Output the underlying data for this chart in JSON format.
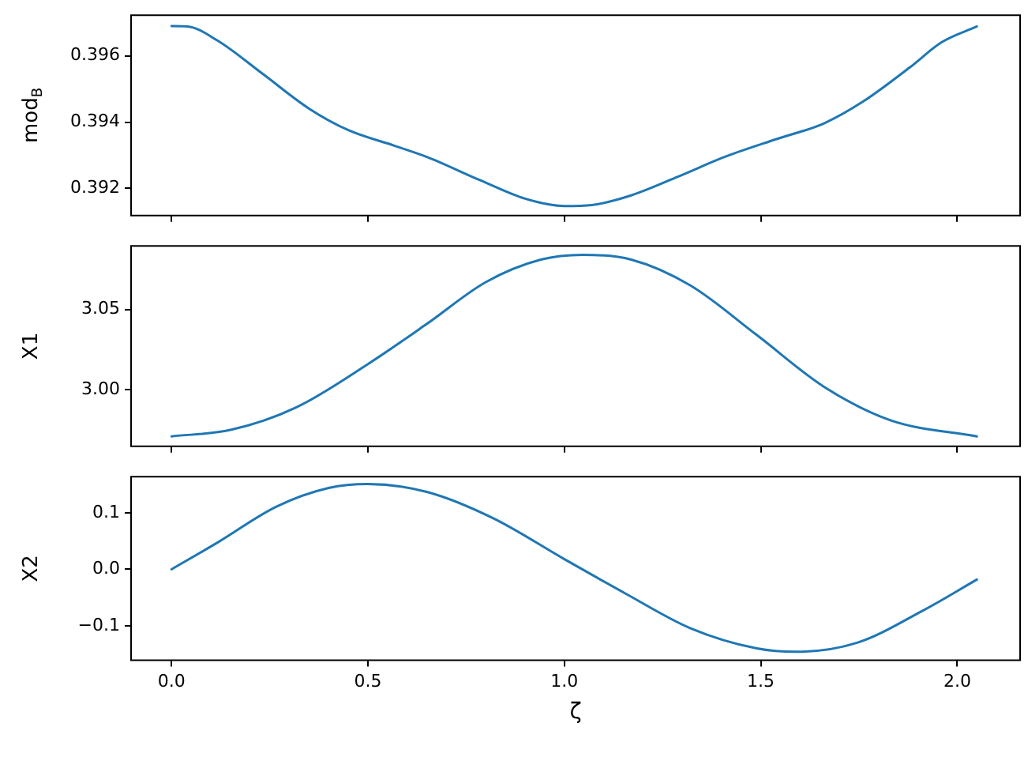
{
  "chart_data": [
    {
      "type": "line",
      "ylabel": "mod$_{B}$",
      "xlim": [
        -0.103,
        2.16
      ],
      "xticks": [
        {
          "value": 0,
          "label": null
        },
        {
          "value": 0.5,
          "label": null
        },
        {
          "value": 1,
          "label": null
        },
        {
          "value": 1.5,
          "label": null
        },
        {
          "value": 2,
          "label": null
        }
      ],
      "ylim": [
        0.39118,
        0.39723
      ],
      "yticks": [
        0.392,
        0.394,
        0.396
      ],
      "tick_labels": "y",
      "grid": false,
      "legend": false,
      "marker": "none",
      "line_style": "solid",
      "series": [
        {
          "color": "#1f77b4",
          "x": [
            0,
            0.04,
            0.116,
            0.233,
            0.35,
            0.45,
            0.567,
            0.65,
            0.785,
            0.9,
            1.0,
            1.07,
            1.17,
            1.29,
            1.41,
            1.54,
            1.66,
            1.76,
            1.88,
            1.96,
            2.05
          ],
          "values": [
            0.3969,
            0.39689,
            0.39647,
            0.39545,
            0.39441,
            0.39376,
            0.39329,
            0.39295,
            0.39225,
            0.39169,
            0.39147,
            0.3915,
            0.39179,
            0.39236,
            0.39296,
            0.39349,
            0.39396,
            0.39462,
            0.39566,
            0.39641,
            0.39689
          ]
        }
      ]
    },
    {
      "type": "line",
      "ylabel": "X1",
      "xlim": [
        -0.103,
        2.16
      ],
      "xticks": [
        {
          "value": 0,
          "label": null
        },
        {
          "value": 0.5,
          "label": null
        },
        {
          "value": 1,
          "label": null
        },
        {
          "value": 1.5,
          "label": null
        },
        {
          "value": 2,
          "label": null
        }
      ],
      "ylim": [
        2.9648,
        3.0895
      ],
      "yticks": [
        {
          "value": 3,
          "label": "3.00"
        },
        {
          "value": 3.05,
          "label": "3.05"
        }
      ],
      "tick_labels": "y",
      "grid": false,
      "legend": false,
      "marker": "none",
      "line_style": "solid",
      "series": [
        {
          "color": "#1f77b4",
          "x": [
            0,
            0.15,
            0.317,
            0.5,
            0.65,
            0.8,
            0.94,
            1.047,
            1.17,
            1.32,
            1.49,
            1.66,
            1.83,
            2.05
          ],
          "values": [
            2.971,
            2.975,
            2.989,
            3.016,
            3.041,
            3.067,
            3.081,
            3.084,
            3.081,
            3.065,
            3.034,
            3.002,
            2.981,
            2.971
          ]
        }
      ]
    },
    {
      "type": "line",
      "xlabel": "ζ",
      "ylabel": "X2",
      "xlim": [
        -0.103,
        2.16
      ],
      "xticks": [
        {
          "value": 0,
          "label": "0.0"
        },
        {
          "value": 0.5,
          "label": "0.5"
        },
        {
          "value": 1,
          "label": "1.0"
        },
        {
          "value": 1.5,
          "label": "1.5"
        },
        {
          "value": 2,
          "label": "2.0"
        }
      ],
      "ylim": [
        -0.161,
        0.164
      ],
      "yticks": [
        {
          "value": -0.1,
          "label": "−0.1"
        },
        {
          "value": 0,
          "label": "0.0"
        },
        {
          "value": 0.1,
          "label": "0.1"
        }
      ],
      "grid": false,
      "legend": false,
      "marker": "none",
      "line_style": "solid",
      "series": [
        {
          "color": "#1f77b4",
          "x": [
            0,
            0.116,
            0.267,
            0.4,
            0.5,
            0.65,
            0.817,
            1.0,
            1.156,
            1.32,
            1.49,
            1.59,
            1.745,
            1.91,
            2.05
          ],
          "values": [
            0,
            0.047,
            0.111,
            0.144,
            0.151,
            0.137,
            0.091,
            0.018,
            -0.043,
            -0.104,
            -0.14,
            -0.146,
            -0.13,
            -0.074,
            -0.018
          ]
        }
      ]
    }
  ]
}
